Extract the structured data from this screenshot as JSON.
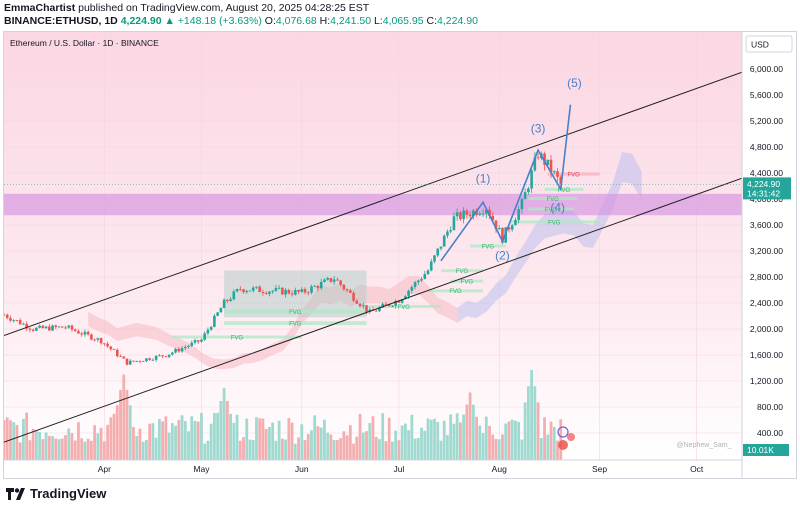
{
  "header": {
    "publisher": "EmmaChartist",
    "published_text": "published on TradingView.com, August 20, 2025 04:28:25 EST",
    "symbol": "BINANCE:ETHUSD, 1D",
    "last": "4,224.90",
    "change": "▲ +148.18 (+3.63%)",
    "ohlc": [
      {
        "k": "O:",
        "v": "4,076.68"
      },
      {
        "k": "H:",
        "v": "4,241.50"
      },
      {
        "k": "L:",
        "v": "4,065.95"
      },
      {
        "k": "C:",
        "v": "4,224.90"
      }
    ]
  },
  "footer": {
    "brand": "TradingView"
  },
  "colors": {
    "up": "#26a69a",
    "down": "#ef5350",
    "wave": "#4a80c8",
    "zone": "#d493e2",
    "cloud": "#b0b8f0",
    "channel": "#222222"
  },
  "chart_data": {
    "type": "candlestick",
    "title": "Ethereum / U.S. Dollar · 1D · BINANCE",
    "currency": "USD",
    "x_ticks": [
      "Apr",
      "May",
      "Jun",
      "Jul",
      "Aug",
      "Sep",
      "Oct"
    ],
    "y_ticks": [
      400,
      800,
      1200,
      1600,
      2000,
      2400,
      2800,
      3200,
      3600,
      4000,
      4400,
      4800,
      5200,
      5600,
      6000
    ],
    "y_tick_labels": [
      "400.00",
      "800.00",
      "1,200.00",
      "1,600.00",
      "2,000.00",
      "2,400.00",
      "2,800.00",
      "3,200.00",
      "3,600.00",
      "4,000.00",
      "4,400.00",
      "4,800.00",
      "5,200.00",
      "5,600.00",
      "6,000.00"
    ],
    "last_price": 4224.9,
    "last_price_label": "4,224.90",
    "countdown": "14:31:42",
    "volume_label": "10.01K",
    "waypoints": [
      {
        "date": "2025-03-01",
        "price": 2220
      },
      {
        "date": "2025-03-10",
        "price": 2000
      },
      {
        "date": "2025-03-20",
        "price": 2030
      },
      {
        "date": "2025-03-31",
        "price": 1820
      },
      {
        "date": "2025-04-08",
        "price": 1480
      },
      {
        "date": "2025-04-20",
        "price": 1600
      },
      {
        "date": "2025-05-01",
        "price": 1830
      },
      {
        "date": "2025-05-08",
        "price": 2400
      },
      {
        "date": "2025-05-13",
        "price": 2620
      },
      {
        "date": "2025-06-01",
        "price": 2560
      },
      {
        "date": "2025-06-11",
        "price": 2780
      },
      {
        "date": "2025-06-22",
        "price": 2250
      },
      {
        "date": "2025-07-01",
        "price": 2450
      },
      {
        "date": "2025-07-10",
        "price": 2900
      },
      {
        "date": "2025-07-18",
        "price": 3700
      },
      {
        "date": "2025-07-28",
        "price": 3880
      },
      {
        "date": "2025-08-02",
        "price": 3400
      },
      {
        "date": "2025-08-08",
        "price": 3920
      },
      {
        "date": "2025-08-13",
        "price": 4700
      },
      {
        "date": "2025-08-17",
        "price": 4450
      },
      {
        "date": "2025-08-20",
        "price": 4225
      }
    ],
    "volume_peaks": [
      {
        "date": "2025-04-07",
        "level": 0.95
      },
      {
        "date": "2025-05-08",
        "level": 0.8
      },
      {
        "date": "2025-07-23",
        "level": 0.75
      },
      {
        "date": "2025-08-11",
        "level": 1.0
      }
    ],
    "demand_zone": {
      "from": "2025-03-01",
      "to": "2025-10-15",
      "low": 3750,
      "high": 4080,
      "color": "#d493e2"
    },
    "range_box": {
      "from": "2025-05-08",
      "to": "2025-06-21",
      "low": 2180,
      "high": 2900
    },
    "channel": {
      "upper": [
        {
          "date": "2025-03-01",
          "price": 1900
        },
        {
          "date": "2025-10-15",
          "price": 5950
        }
      ],
      "lower": [
        {
          "date": "2025-03-01",
          "price": 260
        },
        {
          "date": "2025-10-15",
          "price": 4320
        }
      ]
    },
    "elliott_waves": [
      {
        "label": "(1)",
        "date": "2025-07-27",
        "price": 3950
      },
      {
        "label": "(2)",
        "date": "2025-08-02",
        "price": 3350
      },
      {
        "label": "(3)",
        "date": "2025-08-13",
        "price": 4750
      },
      {
        "label": "(4)",
        "date": "2025-08-20",
        "price": 4150
      },
      {
        "label": "(5)",
        "date": "2025-08-23",
        "price": 5450
      }
    ],
    "wave_label_offsets": [
      {
        "dx": 0,
        "dy": -20
      },
      {
        "dx": 0,
        "dy": 18
      },
      {
        "dx": 0,
        "dy": -18
      },
      {
        "dx": -3,
        "dy": 22
      },
      {
        "dx": 4,
        "dy": -18
      }
    ],
    "fvg_zones": [
      {
        "label": "FVG",
        "from": "2025-05-08",
        "to": "2025-06-21",
        "low": 2060,
        "high": 2120
      },
      {
        "label": "FVG",
        "from": "2025-05-08",
        "to": "2025-06-21",
        "low": 2240,
        "high": 2300
      },
      {
        "label": "FVG",
        "from": "2025-04-22",
        "to": "2025-06-01",
        "low": 1860,
        "high": 1900
      },
      {
        "label": "FVG",
        "from": "2025-06-21",
        "to": "2025-07-14",
        "low": 2330,
        "high": 2370
      },
      {
        "label": "FVG",
        "from": "2025-07-10",
        "to": "2025-07-27",
        "low": 2570,
        "high": 2610
      },
      {
        "label": "FVG",
        "from": "2025-07-17",
        "to": "2025-07-27",
        "low": 2720,
        "high": 2760
      },
      {
        "label": "FVG",
        "from": "2025-07-14",
        "to": "2025-07-27",
        "low": 2880,
        "high": 2920
      },
      {
        "label": "FVG",
        "from": "2025-07-23",
        "to": "2025-08-03",
        "low": 3260,
        "high": 3300
      },
      {
        "label": "FVG",
        "from": "2025-08-04",
        "to": "2025-09-01",
        "low": 3630,
        "high": 3670
      },
      {
        "label": "FVG",
        "from": "2025-08-10",
        "to": "2025-08-24",
        "low": 3830,
        "high": 3870
      },
      {
        "label": "FVG",
        "from": "2025-08-10",
        "to": "2025-08-25",
        "low": 3990,
        "high": 4030
      },
      {
        "label": "FVG",
        "from": "2025-08-15",
        "to": "2025-08-27",
        "low": 4130,
        "high": 4170
      },
      {
        "label": "FVG",
        "from": "2025-08-16",
        "to": "2025-09-01",
        "low": 4360,
        "high": 4410
      }
    ],
    "watermark": "@Nephew_Sam_"
  }
}
